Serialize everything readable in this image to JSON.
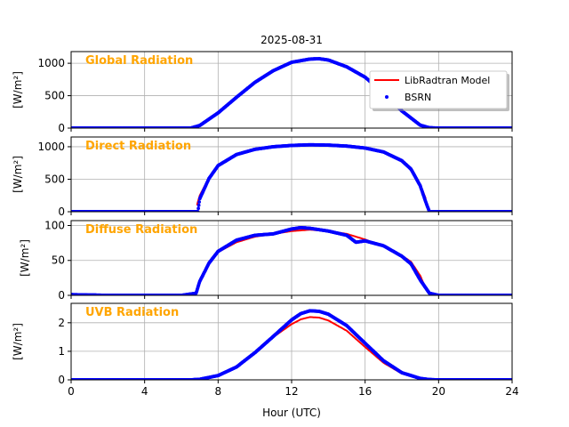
{
  "figure": {
    "date_title": "2025-08-31",
    "xlabel": "Hour (UTC)",
    "x_ticks": [
      0,
      4,
      8,
      12,
      16,
      20,
      24
    ],
    "legend_model": "LibRadtran Model",
    "legend_bsrn": "BSRN"
  },
  "colors": {
    "model": "#ff0000",
    "bsrn": "#0000ff",
    "panel_title": "#ffa500",
    "grid": "#b0b0b0"
  },
  "chart_data": [
    {
      "type": "line",
      "title": "Global Radiation",
      "ylabel": "[W/m²]",
      "xlim": [
        0,
        24
      ],
      "ylim": [
        0,
        1180
      ],
      "y_ticks": [
        0,
        500,
        1000
      ],
      "grid": true,
      "legend": "top-right",
      "series": [
        {
          "name": "LibRadtran Model",
          "x": [
            6.5,
            7,
            8,
            9,
            10,
            11,
            12,
            13,
            13.5,
            14,
            15,
            16,
            17,
            18,
            19,
            19.4
          ],
          "values": [
            0,
            40,
            230,
            470,
            700,
            880,
            1010,
            1060,
            1065,
            1045,
            940,
            780,
            540,
            260,
            40,
            0
          ]
        },
        {
          "name": "BSRN",
          "x": [
            0,
            2,
            4,
            6,
            6.5,
            7,
            8,
            9,
            10,
            11,
            12,
            13,
            13.5,
            14,
            15,
            16,
            17,
            18,
            19,
            19.5,
            20,
            22,
            24
          ],
          "values": [
            0,
            0,
            0,
            0,
            0,
            40,
            235,
            475,
            705,
            885,
            1015,
            1065,
            1070,
            1050,
            945,
            785,
            545,
            265,
            45,
            5,
            0,
            0,
            0
          ]
        }
      ]
    },
    {
      "type": "line",
      "title": "Direct Radiation",
      "ylabel": "[W/m²]",
      "xlim": [
        0,
        24
      ],
      "ylim": [
        0,
        1150
      ],
      "y_ticks": [
        0,
        500,
        1000
      ],
      "grid": true,
      "series": [
        {
          "name": "LibRadtran Model",
          "x": [
            6.85,
            7,
            7.5,
            8,
            9,
            10,
            11,
            12,
            13,
            14,
            15,
            16,
            17,
            18,
            18.5,
            19,
            19.3
          ],
          "values": [
            100,
            250,
            520,
            700,
            870,
            955,
            995,
            1015,
            1025,
            1020,
            1005,
            975,
            915,
            780,
            650,
            420,
            200
          ]
        },
        {
          "name": "BSRN",
          "x": [
            0,
            2,
            4,
            6,
            6.9,
            7,
            7.5,
            8,
            9,
            10,
            11,
            12,
            13,
            14,
            15,
            16,
            17,
            18,
            18.5,
            19,
            19.3,
            19.5,
            20,
            22,
            24
          ],
          "values": [
            0,
            0,
            0,
            0,
            0,
            200,
            510,
            710,
            880,
            960,
            1000,
            1020,
            1030,
            1025,
            1010,
            980,
            920,
            785,
            655,
            400,
            150,
            0,
            0,
            0,
            0
          ]
        }
      ]
    },
    {
      "type": "line",
      "title": "Diffuse Radiation",
      "ylabel": "[W/m²]",
      "xlim": [
        0,
        24
      ],
      "ylim": [
        0,
        107
      ],
      "y_ticks": [
        0,
        50,
        100
      ],
      "grid": true,
      "series": [
        {
          "name": "LibRadtran Model",
          "x": [
            6.8,
            7,
            7.5,
            8,
            9,
            10,
            11,
            12,
            13,
            14,
            15,
            16,
            17,
            18,
            18.5,
            19,
            19.3
          ],
          "values": [
            5,
            20,
            45,
            62,
            76,
            84,
            88,
            92,
            94,
            92,
            88,
            80,
            70,
            57,
            48,
            28,
            10
          ]
        },
        {
          "name": "BSRN",
          "x": [
            0,
            2,
            4,
            6,
            6.8,
            7,
            7.5,
            8,
            9,
            10,
            11,
            12,
            12.5,
            13,
            13.5,
            14,
            15,
            15.5,
            16,
            17,
            18,
            18.5,
            19,
            19.5,
            20,
            22,
            24
          ],
          "values": [
            1,
            0,
            0,
            0,
            3,
            20,
            46,
            63,
            79,
            86,
            88,
            95,
            97,
            96,
            94,
            92,
            86,
            76,
            78,
            71,
            56,
            45,
            22,
            3,
            0,
            0,
            0
          ]
        }
      ]
    },
    {
      "type": "line",
      "title": "UVB Radiation",
      "ylabel": "[W/m²]",
      "xlim": [
        0,
        24
      ],
      "ylim": [
        0,
        2.68
      ],
      "y_ticks": [
        0,
        1,
        2
      ],
      "grid": true,
      "series": [
        {
          "name": "LibRadtran Model",
          "x": [
            6.5,
            7,
            8,
            9,
            10,
            11,
            12,
            12.5,
            13,
            13.5,
            14,
            15,
            16,
            17,
            18,
            19,
            19.5
          ],
          "values": [
            0,
            0.02,
            0.15,
            0.45,
            0.95,
            1.5,
            1.95,
            2.12,
            2.2,
            2.18,
            2.08,
            1.72,
            1.15,
            0.6,
            0.22,
            0.04,
            0
          ]
        },
        {
          "name": "BSRN",
          "x": [
            0,
            2,
            4,
            6,
            6.5,
            7,
            8,
            9,
            10,
            11,
            12,
            12.5,
            13,
            13.5,
            14,
            15,
            16,
            17,
            18,
            19,
            19.5,
            20,
            22,
            24
          ],
          "values": [
            0,
            0,
            0,
            0,
            0,
            0.02,
            0.15,
            0.45,
            0.95,
            1.52,
            2.1,
            2.32,
            2.42,
            2.4,
            2.3,
            1.9,
            1.28,
            0.67,
            0.25,
            0.05,
            0.01,
            0,
            0,
            0
          ]
        }
      ]
    }
  ]
}
